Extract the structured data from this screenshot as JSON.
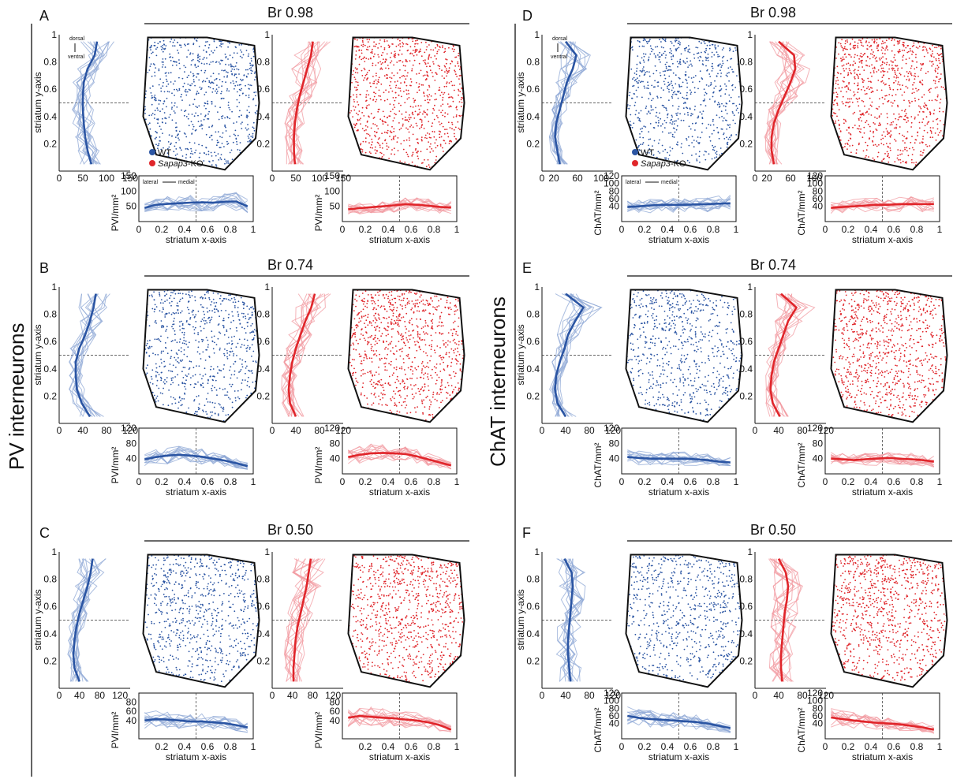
{
  "side_labels": [
    "PV interneurons",
    "ChAT interneurons"
  ],
  "legend": {
    "wt": "WT",
    "ko_prefix": "Sapap3",
    "ko_suffix": "-KO"
  },
  "orientation": {
    "dorsal": "dorsal",
    "ventral": "ventral",
    "lateral": "lateral",
    "medial": "medial"
  },
  "axis_labels": {
    "y_axis": "striatum y-axis",
    "x_axis": "striatum x-axis",
    "pv_density": "PVI/mm²",
    "chat_density": "ChAT/mm²"
  },
  "colors": {
    "wt": "#2b55a3",
    "ko": "#e0262b",
    "wt_light": "#8fa8d6",
    "ko_light": "#f19aa0"
  },
  "chart_data": [
    {
      "type": "line",
      "panel": "A",
      "group": "PV",
      "title": "Br 0.98",
      "vertical_profile": {
        "xlim": [
          0,
          150
        ],
        "xticks": [
          0,
          50,
          100,
          150
        ],
        "ylim": [
          0,
          1
        ],
        "yticks": [
          0.2,
          0.4,
          0.6,
          0.8,
          1
        ],
        "y": [
          0.05,
          0.15,
          0.25,
          0.35,
          0.45,
          0.55,
          0.65,
          0.75,
          0.85,
          0.95
        ],
        "wt": [
          68,
          60,
          55,
          52,
          50,
          50,
          52,
          60,
          75,
          80
        ],
        "ko": [
          48,
          46,
          46,
          48,
          52,
          58,
          66,
          74,
          82,
          86
        ]
      },
      "horizontal_profile": {
        "xlim": [
          0,
          1
        ],
        "xticks": [
          0,
          0.2,
          0.4,
          0.6,
          0.8,
          1
        ],
        "ylim": [
          0,
          150
        ],
        "yticks": [
          50,
          100,
          150
        ],
        "x": [
          0.05,
          0.15,
          0.25,
          0.35,
          0.45,
          0.55,
          0.65,
          0.75,
          0.85,
          0.95
        ],
        "wt": [
          45,
          55,
          58,
          60,
          62,
          63,
          62,
          65,
          66,
          50
        ],
        "ko": [
          40,
          44,
          47,
          50,
          53,
          57,
          55,
          52,
          48,
          46
        ]
      }
    },
    {
      "type": "line",
      "panel": "B",
      "group": "PV",
      "title": "Br 0.74",
      "vertical_profile": {
        "xlim": [
          0,
          120
        ],
        "xticks": [
          0,
          40,
          80,
          120
        ],
        "ylim": [
          0,
          1
        ],
        "yticks": [
          0.2,
          0.4,
          0.6,
          0.8,
          1
        ],
        "y": [
          0.05,
          0.15,
          0.25,
          0.35,
          0.45,
          0.55,
          0.65,
          0.75,
          0.85,
          0.95
        ],
        "wt": [
          52,
          38,
          30,
          28,
          28,
          34,
          44,
          52,
          58,
          62
        ],
        "ko": [
          40,
          30,
          28,
          30,
          34,
          40,
          48,
          56,
          66,
          72
        ]
      },
      "horizontal_profile": {
        "xlim": [
          0,
          1
        ],
        "xticks": [
          0,
          0.2,
          0.4,
          0.6,
          0.8,
          1
        ],
        "ylim": [
          0,
          120
        ],
        "yticks": [
          40,
          80,
          120
        ],
        "x": [
          0.05,
          0.15,
          0.25,
          0.35,
          0.45,
          0.55,
          0.65,
          0.75,
          0.85,
          0.95
        ],
        "wt": [
          38,
          44,
          48,
          50,
          48,
          45,
          40,
          35,
          28,
          20
        ],
        "ko": [
          44,
          50,
          54,
          55,
          54,
          52,
          46,
          38,
          30,
          22
        ]
      }
    },
    {
      "type": "line",
      "panel": "C",
      "group": "PV",
      "title": "Br 0.50",
      "vertical_profile": {
        "xlim": [
          0,
          140
        ],
        "xticks": [
          0,
          40,
          80,
          120
        ],
        "ylim": [
          0,
          1
        ],
        "yticks": [
          0.2,
          0.4,
          0.6,
          0.8,
          1
        ],
        "y": [
          0.05,
          0.15,
          0.25,
          0.35,
          0.45,
          0.55,
          0.65,
          0.75,
          0.85,
          0.95
        ],
        "wt": [
          40,
          30,
          28,
          30,
          34,
          40,
          48,
          56,
          62,
          66
        ],
        "ko": [
          42,
          42,
          44,
          46,
          50,
          56,
          62,
          68,
          72,
          76
        ]
      },
      "horizontal_profile": {
        "xlim": [
          0,
          1
        ],
        "xticks": [
          0.2,
          0.4,
          0.6,
          0.8,
          1
        ],
        "ylim": [
          0,
          100
        ],
        "yticks": [
          40,
          60,
          80
        ],
        "x": [
          0.05,
          0.15,
          0.25,
          0.35,
          0.45,
          0.55,
          0.65,
          0.75,
          0.85,
          0.95
        ],
        "wt": [
          40,
          43,
          42,
          40,
          38,
          38,
          36,
          34,
          30,
          25
        ],
        "ko": [
          46,
          50,
          48,
          46,
          45,
          42,
          40,
          36,
          30,
          20
        ]
      }
    },
    {
      "type": "line",
      "panel": "D",
      "group": "ChAT",
      "title": "Br 0.98",
      "vertical_profile": {
        "xlim": [
          0,
          120
        ],
        "xticks": [
          0,
          20,
          60,
          100
        ],
        "ylim": [
          0,
          1
        ],
        "yticks": [
          0.2,
          0.4,
          0.6,
          0.8,
          1
        ],
        "y": [
          0.05,
          0.15,
          0.25,
          0.35,
          0.45,
          0.55,
          0.65,
          0.75,
          0.85,
          0.95
        ],
        "wt": [
          30,
          26,
          22,
          24,
          30,
          36,
          42,
          52,
          58,
          40
        ],
        "ko": [
          32,
          28,
          28,
          32,
          40,
          50,
          60,
          68,
          66,
          40
        ]
      },
      "horizontal_profile": {
        "xlim": [
          0,
          1
        ],
        "xticks": [
          0,
          0.2,
          0.4,
          0.6,
          0.8,
          1
        ],
        "ylim": [
          0,
          120
        ],
        "yticks": [
          40,
          60,
          80,
          100,
          120
        ],
        "x": [
          0.05,
          0.15,
          0.25,
          0.35,
          0.45,
          0.55,
          0.65,
          0.75,
          0.85,
          0.95
        ],
        "wt": [
          38,
          40,
          42,
          44,
          44,
          44,
          45,
          46,
          47,
          48
        ],
        "ko": [
          36,
          38,
          40,
          42,
          44,
          44,
          46,
          46,
          46,
          46
        ]
      }
    },
    {
      "type": "line",
      "panel": "E",
      "group": "ChAT",
      "title": "Br 0.74",
      "vertical_profile": {
        "xlim": [
          0,
          120
        ],
        "xticks": [
          0,
          40,
          80,
          120
        ],
        "ylim": [
          0,
          1
        ],
        "yticks": [
          0.2,
          0.4,
          0.6,
          0.8,
          1
        ],
        "y": [
          0.05,
          0.15,
          0.25,
          0.35,
          0.45,
          0.55,
          0.65,
          0.75,
          0.85,
          0.95
        ],
        "wt": [
          40,
          26,
          22,
          24,
          30,
          38,
          44,
          56,
          70,
          40
        ],
        "ko": [
          42,
          30,
          26,
          28,
          32,
          40,
          48,
          56,
          70,
          44
        ]
      },
      "horizontal_profile": {
        "xlim": [
          0,
          1
        ],
        "xticks": [
          0,
          0.2,
          0.4,
          0.6,
          0.8,
          1
        ],
        "ylim": [
          0,
          120
        ],
        "yticks": [
          40,
          80,
          120
        ],
        "x": [
          0.05,
          0.15,
          0.25,
          0.35,
          0.45,
          0.55,
          0.65,
          0.75,
          0.85,
          0.95
        ],
        "wt": [
          44,
          42,
          40,
          40,
          40,
          40,
          38,
          36,
          32,
          30
        ],
        "ko": [
          40,
          38,
          36,
          38,
          40,
          42,
          40,
          38,
          36,
          32
        ]
      }
    },
    {
      "type": "line",
      "panel": "F",
      "group": "ChAT",
      "title": "Br 0.50",
      "vertical_profile": {
        "xlim": [
          0,
          120
        ],
        "xticks": [
          0,
          40,
          80,
          120
        ],
        "ylim": [
          0,
          1
        ],
        "yticks": [
          0.2,
          0.4,
          0.6,
          0.8,
          1
        ],
        "y": [
          0.05,
          0.15,
          0.25,
          0.35,
          0.45,
          0.55,
          0.65,
          0.75,
          0.85,
          0.95
        ],
        "wt": [
          48,
          46,
          44,
          44,
          46,
          48,
          50,
          52,
          50,
          38
        ],
        "ko": [
          46,
          44,
          44,
          46,
          48,
          50,
          54,
          56,
          52,
          40
        ]
      },
      "horizontal_profile": {
        "xlim": [
          0,
          1
        ],
        "xticks": [
          0,
          0.2,
          0.4,
          0.6,
          0.8,
          1
        ],
        "ylim": [
          0,
          120
        ],
        "yticks": [
          40,
          60,
          80,
          100,
          120
        ],
        "x": [
          0.05,
          0.15,
          0.25,
          0.35,
          0.45,
          0.55,
          0.65,
          0.75,
          0.85,
          0.95
        ],
        "wt": [
          60,
          55,
          52,
          50,
          48,
          46,
          44,
          40,
          34,
          28
        ],
        "ko": [
          56,
          52,
          48,
          45,
          42,
          40,
          38,
          34,
          30,
          24
        ]
      }
    }
  ]
}
